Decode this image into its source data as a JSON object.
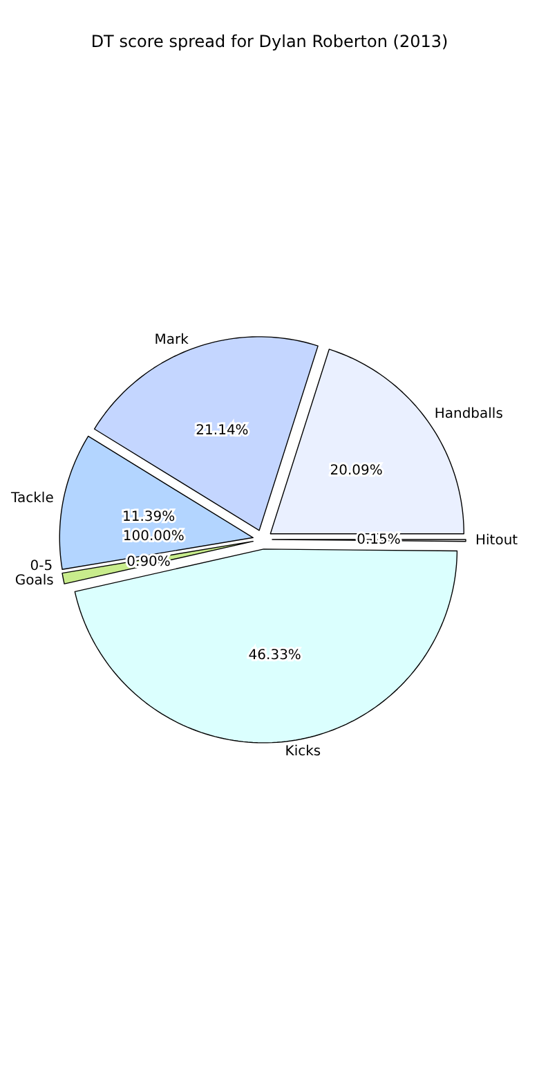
{
  "chart_data": {
    "type": "pie",
    "title": "DT score spread for Dylan Roberton (2013)",
    "categories": [
      "Handballs",
      "Mark",
      "Tackle",
      "Goals",
      "Kicks",
      "Hitout"
    ],
    "values": [
      20.09,
      21.14,
      11.39,
      0.9,
      46.33,
      0.15
    ],
    "value_labels": [
      "20.09%",
      "21.14%",
      "11.39%",
      "0.90%",
      "46.33%",
      "0.15%"
    ],
    "colors": [
      "#eaf0ff",
      "#c4d6ff",
      "#b3d5ff",
      "#c8ec8c",
      "#dbfffe",
      "#f4f4f4"
    ],
    "annotations": [
      "0-5",
      "100.00%"
    ]
  }
}
